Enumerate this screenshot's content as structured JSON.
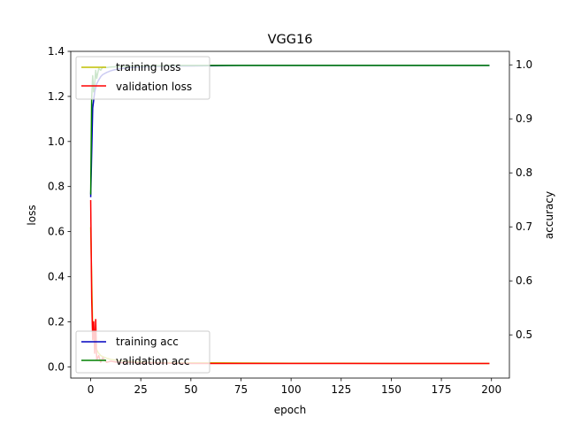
{
  "chart_data": {
    "type": "line",
    "title": "VGG16",
    "xlabel": "epoch",
    "ylabel_left": "loss",
    "ylabel_right": "accuracy",
    "xlim": [
      -9.95,
      208.95
    ],
    "ylim_left": [
      -0.05,
      1.4
    ],
    "ylim_right": [
      0.42,
      1.025
    ],
    "xticks": [
      0,
      25,
      50,
      75,
      100,
      125,
      150,
      175,
      200
    ],
    "yticks_left": [
      0.0,
      0.2,
      0.4,
      0.6,
      0.8,
      1.0,
      1.2,
      1.4
    ],
    "yticks_left_labels": [
      "0.0",
      "0.2",
      "0.4",
      "0.6",
      "0.8",
      "1.0",
      "1.2",
      "1.4"
    ],
    "yticks_right": [
      0.5,
      0.6,
      0.7,
      0.8,
      0.9,
      1.0
    ],
    "yticks_right_labels": [
      "0.5",
      "0.6",
      "0.7",
      "0.8",
      "0.9",
      "1.0"
    ],
    "grid": false,
    "legends": [
      {
        "placement": "upper-left",
        "entries": [
          {
            "label": "training loss",
            "color": "#bfbf00"
          },
          {
            "label": "validation loss",
            "color": "#ff0000"
          }
        ]
      },
      {
        "placement": "lower-left",
        "entries": [
          {
            "label": "training acc",
            "color": "#0000bf"
          },
          {
            "label": "validation acc",
            "color": "#008000"
          }
        ]
      }
    ],
    "series": [
      {
        "name": "training loss",
        "axis": "left",
        "color": "#bfbf00",
        "x": [
          0,
          1,
          2,
          3,
          4,
          5,
          6,
          8,
          10,
          15,
          20,
          25,
          30,
          40,
          50,
          75,
          100,
          125,
          150,
          175,
          199
        ],
        "y": [
          0.62,
          0.16,
          0.1,
          0.075,
          0.06,
          0.05,
          0.045,
          0.038,
          0.033,
          0.027,
          0.024,
          0.022,
          0.02,
          0.019,
          0.018,
          0.017,
          0.016,
          0.016,
          0.015,
          0.015,
          0.015
        ]
      },
      {
        "name": "validation loss",
        "axis": "left",
        "color": "#ff0000",
        "x": [
          0,
          0.5,
          1,
          1.5,
          2,
          2.5,
          3,
          4,
          5,
          6,
          8,
          10,
          15,
          20,
          25,
          30,
          40,
          50,
          75,
          100,
          125,
          150,
          175,
          199
        ],
        "y": [
          0.74,
          0.3,
          0.12,
          0.2,
          0.06,
          0.21,
          0.03,
          0.05,
          0.02,
          0.04,
          0.02,
          0.025,
          0.018,
          0.02,
          0.016,
          0.018,
          0.016,
          0.015,
          0.015,
          0.015,
          0.015,
          0.015,
          0.015,
          0.015
        ]
      },
      {
        "name": "training acc",
        "axis": "right",
        "color": "#0000bf",
        "x": [
          0,
          1,
          2,
          3,
          4,
          5,
          6,
          8,
          10,
          12,
          15,
          20,
          25,
          30,
          40,
          50,
          75,
          100,
          125,
          150,
          175,
          199
        ],
        "y": [
          0.755,
          0.92,
          0.95,
          0.965,
          0.972,
          0.978,
          0.982,
          0.986,
          0.989,
          0.991,
          0.993,
          0.995,
          0.996,
          0.997,
          0.998,
          0.998,
          0.999,
          0.999,
          0.999,
          0.999,
          0.999,
          0.999
        ]
      },
      {
        "name": "validation acc",
        "axis": "right",
        "color": "#008000",
        "x": [
          0,
          0.5,
          1,
          1.5,
          2,
          2.5,
          3,
          4,
          5,
          6,
          8,
          10,
          15,
          20,
          25,
          30,
          40,
          50,
          75,
          100,
          125,
          150,
          175,
          199
        ],
        "y": [
          0.76,
          0.94,
          0.98,
          0.95,
          0.965,
          0.99,
          0.975,
          0.993,
          0.99,
          0.996,
          0.995,
          0.996,
          0.997,
          0.998,
          0.998,
          0.998,
          0.999,
          0.999,
          0.999,
          0.999,
          0.999,
          0.999,
          0.999,
          0.999
        ]
      }
    ]
  }
}
